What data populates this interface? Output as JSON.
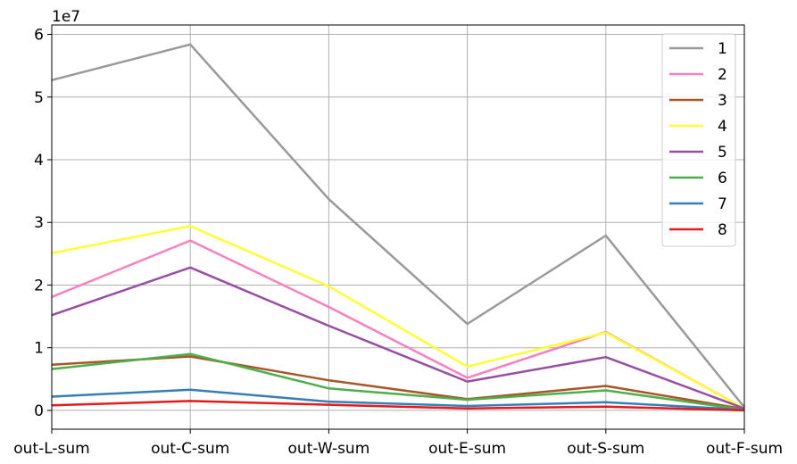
{
  "chart_data": {
    "type": "line",
    "title": "",
    "xlabel": "",
    "ylabel": "",
    "y_multiplier_label": "1e7",
    "categories": [
      "out-L-sum",
      "out-C-sum",
      "out-W-sum",
      "out-E-sum",
      "out-S-sum",
      "out-F-sum"
    ],
    "y_ticks": [
      0,
      1,
      2,
      3,
      4,
      5,
      6
    ],
    "y_tick_labels": [
      "0",
      "1",
      "2",
      "3",
      "4",
      "5",
      "6"
    ],
    "ylim": [
      -0.3,
      6.15
    ],
    "grid": true,
    "legend_position": "top-right",
    "series": [
      {
        "name": "1",
        "color": "#999999",
        "values": [
          5.27,
          5.84,
          3.37,
          1.38,
          2.79,
          0.05
        ]
      },
      {
        "name": "2",
        "color": "#f781bf",
        "values": [
          1.81,
          2.71,
          1.65,
          0.52,
          1.25,
          0.03
        ]
      },
      {
        "name": "3",
        "color": "#a65628",
        "values": [
          0.73,
          0.86,
          0.48,
          0.18,
          0.39,
          0.02
        ]
      },
      {
        "name": "4",
        "color": "#ffff33",
        "values": [
          2.51,
          2.94,
          1.98,
          0.7,
          1.24,
          0.03
        ]
      },
      {
        "name": "5",
        "color": "#984ea3",
        "values": [
          1.52,
          2.28,
          1.35,
          0.46,
          0.85,
          0.03
        ]
      },
      {
        "name": "6",
        "color": "#4daf4a",
        "values": [
          0.66,
          0.9,
          0.35,
          0.17,
          0.32,
          0.01
        ]
      },
      {
        "name": "7",
        "color": "#377eb8",
        "values": [
          0.22,
          0.33,
          0.14,
          0.07,
          0.13,
          0.01
        ]
      },
      {
        "name": "8",
        "color": "#e41a1c",
        "values": [
          0.08,
          0.15,
          0.09,
          0.03,
          0.06,
          0.0
        ]
      }
    ]
  }
}
